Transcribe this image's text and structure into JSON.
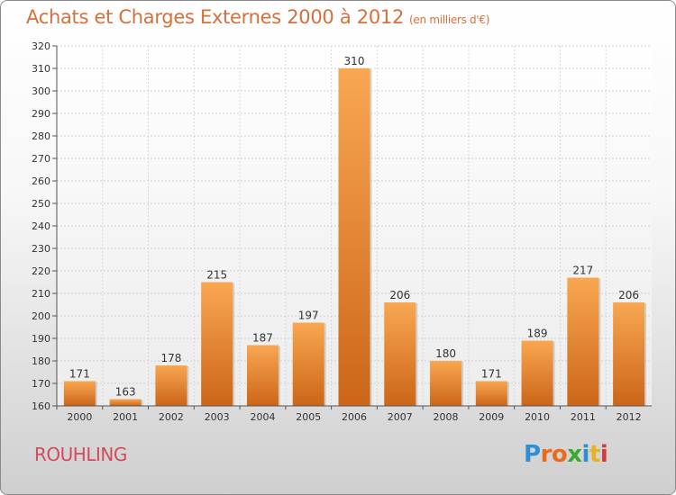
{
  "header": {
    "title": "Achats et Charges Externes 2000 à 2012",
    "unit": "(en milliers d'€)"
  },
  "footer": {
    "commune": "ROUHLING",
    "logo_text": "Proxiti",
    "logo_colors": [
      "#2f8fd6",
      "#e86b1f",
      "#e86b1f",
      "#3aa832",
      "#2f8fd6",
      "#e8b11f",
      "#d23c3c"
    ]
  },
  "colors": {
    "bar_top": "#f9a751",
    "bar_bottom": "#cc6518",
    "title": "#d7703a",
    "commune": "#d24a5c"
  },
  "chart_data": {
    "type": "bar",
    "categories": [
      "2000",
      "2001",
      "2002",
      "2003",
      "2004",
      "2005",
      "2006",
      "2007",
      "2008",
      "2009",
      "2010",
      "2011",
      "2012"
    ],
    "values": [
      171,
      163,
      178,
      215,
      187,
      197,
      310,
      206,
      180,
      171,
      189,
      217,
      206
    ],
    "ylim": [
      160,
      320
    ],
    "ytick_step": 10,
    "grid": true
  }
}
